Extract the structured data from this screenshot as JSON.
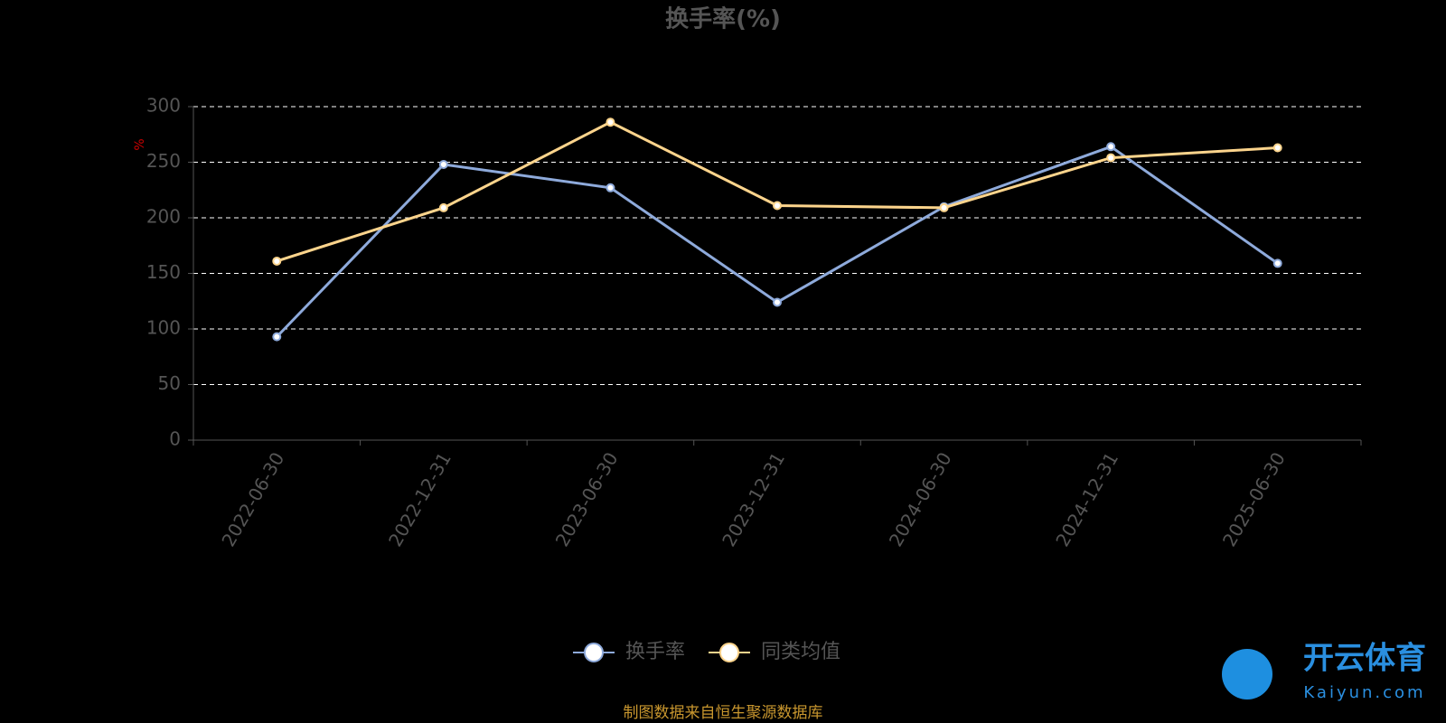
{
  "chart_data": {
    "type": "line",
    "title": "换手率(%)",
    "y_label": "%",
    "categories": [
      "2022-06-30",
      "2022-12-31",
      "2023-06-30",
      "2023-12-31",
      "2024-06-30",
      "2024-12-31",
      "2025-06-30"
    ],
    "series": [
      {
        "name": "换手率",
        "color": "#8eaadb",
        "values": [
          93,
          248,
          227,
          124,
          210,
          264,
          159
        ]
      },
      {
        "name": "同类均值",
        "color": "#fcd48c",
        "values": [
          161,
          209,
          286,
          211,
          209,
          254,
          263
        ]
      }
    ],
    "ylim": [
      0,
      300
    ],
    "yticks": [
      0,
      50,
      100,
      150,
      200,
      250,
      300
    ],
    "grid": true,
    "source": "制图数据来自恒生聚源数据库",
    "watermark": {
      "name": "开云体育",
      "site": "Kaiyun.com"
    }
  }
}
